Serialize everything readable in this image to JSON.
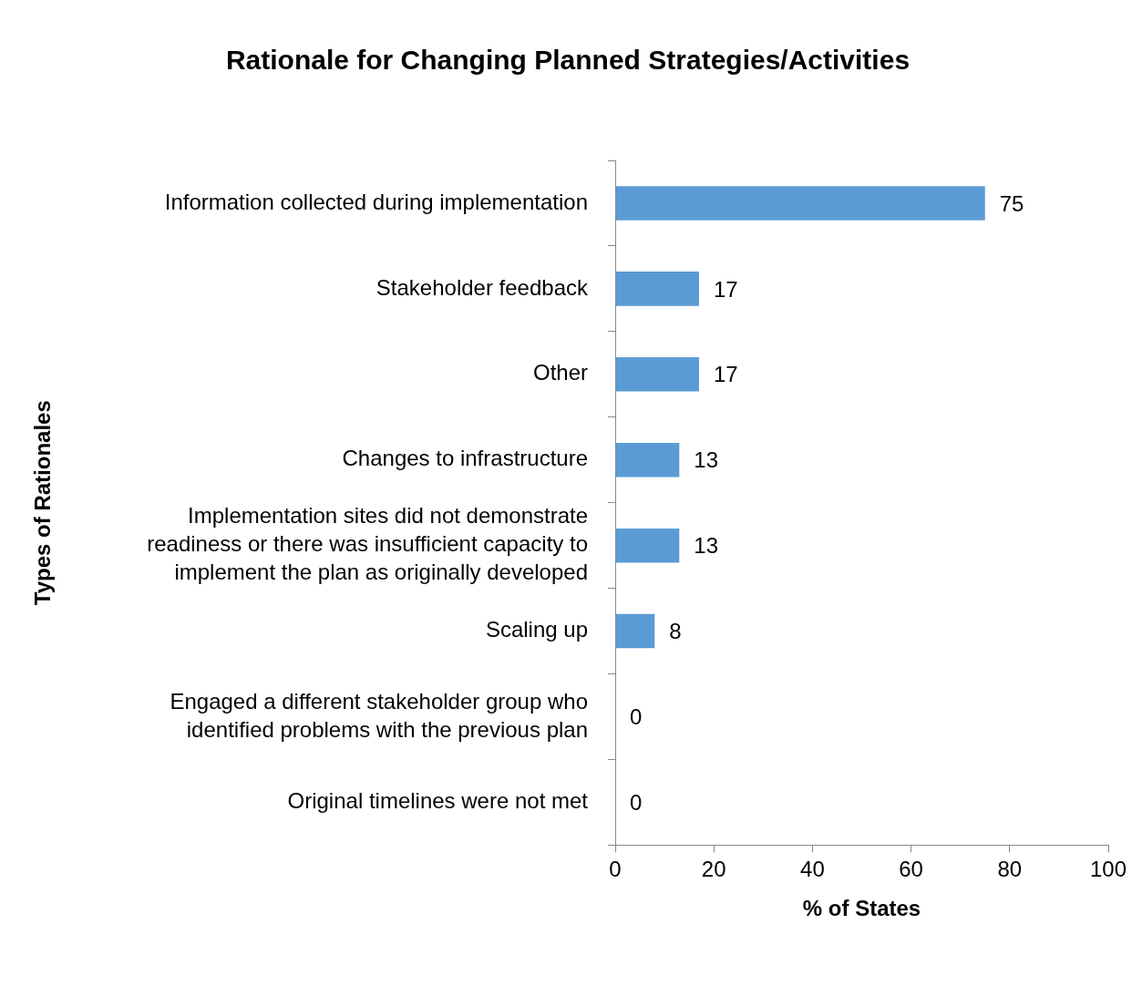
{
  "chart_data": {
    "type": "bar",
    "orientation": "horizontal",
    "title": "Rationale for Changing Planned Strategies/Activities",
    "xlabel": "% of States",
    "ylabel": "Types of Rationales",
    "categories": [
      "Information collected during implementation",
      "Stakeholder feedback",
      "Other",
      "Changes to infrastructure",
      "Implementation sites did not demonstrate readiness or there was insufficient capacity to implement the plan as originally developed",
      "Scaling up",
      "Engaged a different stakeholder group who identified problems with the previous plan",
      "Original timelines were not met"
    ],
    "values": [
      75,
      17,
      17,
      13,
      13,
      8,
      0,
      0
    ],
    "color": "#5b9bd5",
    "xlim": [
      0,
      100
    ],
    "xticks": [
      0,
      20,
      40,
      60,
      80,
      100
    ],
    "grid": false,
    "legend": false,
    "data_labels": true
  }
}
